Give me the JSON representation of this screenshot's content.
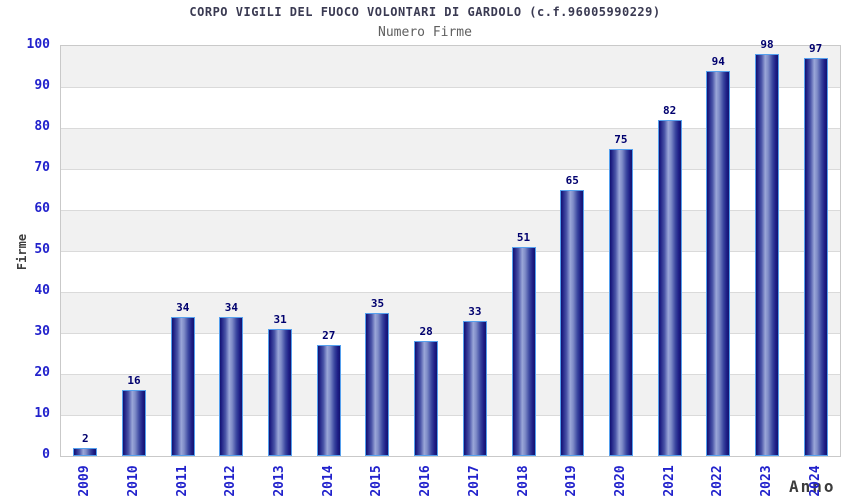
{
  "chart_data": {
    "type": "bar",
    "title": "CORPO VIGILI DEL FUOCO VOLONTARI DI GARDOLO (c.f.96005990229)",
    "subtitle": "Numero Firme",
    "xlabel": "Anno",
    "ylabel": "Firme",
    "categories": [
      "2009",
      "2010",
      "2011",
      "2012",
      "2013",
      "2014",
      "2015",
      "2016",
      "2017",
      "2018",
      "2019",
      "2020",
      "2021",
      "2022",
      "2023",
      "2024"
    ],
    "values": [
      2,
      16,
      34,
      34,
      31,
      27,
      35,
      28,
      33,
      51,
      65,
      75,
      82,
      94,
      98,
      97
    ],
    "ylim": [
      0,
      100
    ],
    "ytick_step": 10,
    "grid": true,
    "alternating_bands": true,
    "legend": null,
    "colors": {
      "title_color": "#3a3a52",
      "subtitle_color": "#606060",
      "axis_label_color": "#3c3c3c",
      "tick_color": "#2222cc",
      "value_color": "#00006e",
      "bar_edge": "#13136f",
      "bar_center": "#9aa6d8",
      "bar_outline": "#55a0ee",
      "band_color": "#f1f1f1",
      "grid_color": "#dadada",
      "plot_border": "#c9c9c9"
    }
  }
}
